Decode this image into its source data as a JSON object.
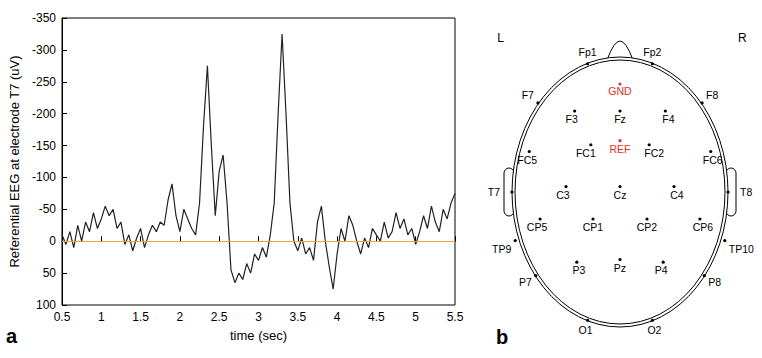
{
  "chart_data": {
    "type": "line",
    "panel_label": "a",
    "x_label": "time (sec)",
    "y_label": "Referential EEG at electrode T7 (uV)",
    "xlim": [
      0.5,
      5.5
    ],
    "xticks": [
      0.5,
      1,
      1.5,
      2,
      2.5,
      3,
      3.5,
      4,
      4.5,
      5,
      5.5
    ],
    "ylim": [
      100,
      -350
    ],
    "yticks": [
      -350,
      -300,
      -250,
      -200,
      -150,
      -100,
      -50,
      0,
      50,
      100
    ],
    "grid": false,
    "hline": {
      "y": 0,
      "color": "#e8a33d"
    },
    "series": [
      {
        "color": "#222222",
        "x": [
          0.5,
          0.55,
          0.6,
          0.65,
          0.7,
          0.75,
          0.8,
          0.85,
          0.9,
          0.95,
          1,
          1.05,
          1.1,
          1.15,
          1.2,
          1.25,
          1.3,
          1.35,
          1.4,
          1.45,
          1.5,
          1.55,
          1.6,
          1.65,
          1.7,
          1.75,
          1.8,
          1.85,
          1.9,
          1.95,
          2,
          2.05,
          2.1,
          2.15,
          2.2,
          2.25,
          2.3,
          2.35,
          2.4,
          2.45,
          2.5,
          2.55,
          2.6,
          2.65,
          2.7,
          2.75,
          2.8,
          2.85,
          2.9,
          2.95,
          3,
          3.05,
          3.1,
          3.15,
          3.2,
          3.25,
          3.3,
          3.35,
          3.4,
          3.45,
          3.5,
          3.55,
          3.6,
          3.65,
          3.7,
          3.75,
          3.8,
          3.85,
          3.9,
          3.95,
          4,
          4.05,
          4.1,
          4.15,
          4.2,
          4.25,
          4.3,
          4.35,
          4.4,
          4.45,
          4.5,
          4.55,
          4.6,
          4.65,
          4.7,
          4.75,
          4.8,
          4.85,
          4.9,
          4.95,
          5,
          5.05,
          5.1,
          5.15,
          5.2,
          5.25,
          5.3,
          5.35,
          5.4,
          5.45,
          5.5
        ],
        "values": [
          -10,
          5,
          -15,
          10,
          -25,
          0,
          -30,
          -15,
          -45,
          -20,
          -35,
          -55,
          -40,
          -50,
          -20,
          -30,
          5,
          -10,
          15,
          -5,
          -20,
          10,
          -10,
          -25,
          -15,
          -30,
          -25,
          -65,
          -90,
          -40,
          -15,
          -50,
          -35,
          -20,
          -10,
          -60,
          -180,
          -275,
          -150,
          -40,
          -110,
          -135,
          -60,
          45,
          65,
          50,
          60,
          35,
          50,
          20,
          30,
          10,
          25,
          -10,
          -60,
          -200,
          -325,
          -200,
          -60,
          0,
          15,
          -5,
          20,
          10,
          30,
          -30,
          -55,
          0,
          40,
          75,
          20,
          -20,
          0,
          -40,
          -25,
          0,
          20,
          -5,
          10,
          -20,
          -10,
          0,
          -30,
          -5,
          -15,
          -45,
          -20,
          -35,
          -10,
          -20,
          5,
          -15,
          -40,
          -20,
          -55,
          -30,
          -15,
          -50,
          -35,
          -60,
          -75
        ]
      }
    ]
  },
  "diagram": {
    "panel_label": "b",
    "left": "L",
    "right": "R",
    "electrodes": [
      {
        "label": "Fp1"
      },
      {
        "label": "Fp2"
      },
      {
        "label": "F7"
      },
      {
        "label": "F8"
      },
      {
        "label": "GND",
        "color": "#e0302a"
      },
      {
        "label": "F3"
      },
      {
        "label": "Fz"
      },
      {
        "label": "F4"
      },
      {
        "label": "FC5"
      },
      {
        "label": "FC1"
      },
      {
        "label": "REF",
        "color": "#e0302a"
      },
      {
        "label": "FC2"
      },
      {
        "label": "FC6"
      },
      {
        "label": "T7"
      },
      {
        "label": "C3"
      },
      {
        "label": "Cz"
      },
      {
        "label": "C4"
      },
      {
        "label": "T8"
      },
      {
        "label": "CP5"
      },
      {
        "label": "CP1"
      },
      {
        "label": "CP2"
      },
      {
        "label": "CP6"
      },
      {
        "label": "TP9"
      },
      {
        "label": "TP10"
      },
      {
        "label": "P7"
      },
      {
        "label": "P3"
      },
      {
        "label": "Pz"
      },
      {
        "label": "P4"
      },
      {
        "label": "P8"
      },
      {
        "label": "O1"
      },
      {
        "label": "O2"
      }
    ]
  }
}
